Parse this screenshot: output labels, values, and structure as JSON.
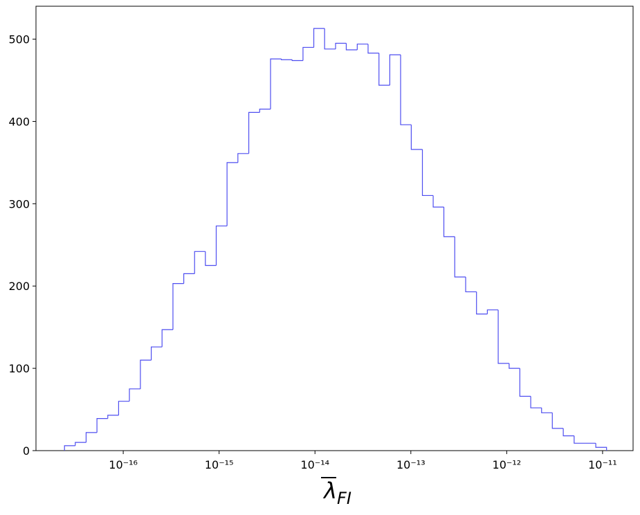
{
  "chart_data": {
    "type": "histogram",
    "xlabel_symbol": "λ",
    "xlabel_subscript": "FI",
    "bins": [
      2.44e-17,
      3.16e-17,
      4.1e-17,
      5.32e-17,
      6.9e-17,
      8.95e-17,
      1.16e-16,
      1.51e-16,
      1.96e-16,
      2.54e-16,
      3.3e-16,
      4.28e-16,
      5.55e-16,
      7.19e-16,
      9.33e-16,
      1.21e-15,
      1.57e-15,
      2.04e-15,
      2.65e-15,
      3.44e-15,
      4.46e-15,
      5.78e-15,
      7.5e-15,
      9.72e-15,
      1.26e-14,
      1.64e-14,
      2.12e-14,
      2.76e-14,
      3.58e-14,
      4.65e-14,
      6.03e-14,
      7.82e-14,
      1.01e-13,
      1.32e-13,
      1.71e-13,
      2.21e-13,
      2.87e-13,
      3.73e-13,
      4.84e-13,
      6.28e-13,
      8.15e-13,
      1.06e-12,
      1.37e-12,
      1.78e-12,
      2.31e-12,
      2.99e-12,
      3.89e-12,
      5.05e-12,
      6.55e-12,
      8.49e-12,
      1.1e-11
    ],
    "counts": [
      6,
      10,
      22,
      39,
      43,
      60,
      75,
      110,
      126,
      147,
      203,
      215,
      242,
      225,
      273,
      350,
      361,
      411,
      415,
      476,
      475,
      474,
      490,
      513,
      488,
      495,
      487,
      494,
      483,
      444,
      481,
      396,
      366,
      310,
      296,
      260,
      211,
      193,
      166,
      171,
      106,
      100,
      66,
      52,
      46,
      27,
      18,
      9,
      9,
      4
    ],
    "color": "#4d4df0",
    "xscale": "log",
    "xlim": [
      1.23e-17,
      2.08e-11
    ],
    "xticks": [
      {
        "value": 1e-16,
        "label": "10⁻¹⁶"
      },
      {
        "value": 1e-15,
        "label": "10⁻¹⁵"
      },
      {
        "value": 1e-14,
        "label": "10⁻¹⁴"
      },
      {
        "value": 1e-13,
        "label": "10⁻¹³"
      },
      {
        "value": 1e-12,
        "label": "10⁻¹²"
      },
      {
        "value": 1e-11,
        "label": "10⁻¹¹"
      }
    ],
    "ylim": [
      0,
      540
    ],
    "yticks": [
      0,
      100,
      200,
      300,
      400,
      500
    ]
  }
}
